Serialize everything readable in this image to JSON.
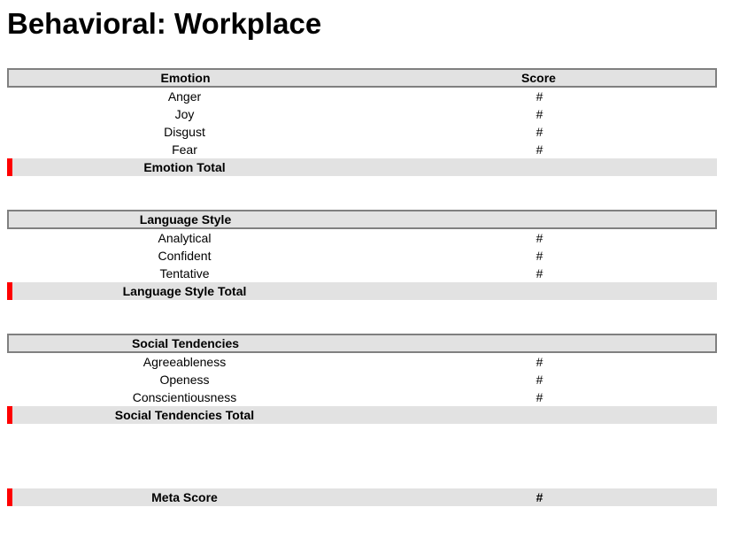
{
  "page": {
    "title": "Behavioral: Workplace"
  },
  "colors": {
    "accent_red": "#FF0000",
    "header_bg": "#E2E2E2",
    "header_border": "#808080",
    "total_row_bg": "#E2E2E2"
  },
  "sections": [
    {
      "header_label": "Emotion",
      "score_header": "Score",
      "rows": [
        {
          "label": "Anger",
          "score": "#"
        },
        {
          "label": "Joy",
          "score": "#"
        },
        {
          "label": "Disgust",
          "score": "#"
        },
        {
          "label": "Fear",
          "score": "#"
        }
      ],
      "total": {
        "label": "Emotion Total",
        "score": ""
      }
    },
    {
      "header_label": "Language Style",
      "score_header": "",
      "rows": [
        {
          "label": "Analytical",
          "score": "#"
        },
        {
          "label": "Confident",
          "score": "#"
        },
        {
          "label": "Tentative",
          "score": "#"
        }
      ],
      "total": {
        "label": "Language Style Total",
        "score": ""
      }
    },
    {
      "header_label": "Social Tendencies",
      "score_header": "",
      "rows": [
        {
          "label": "Agreeableness",
          "score": "#"
        },
        {
          "label": "Openess",
          "score": "#"
        },
        {
          "label": "Conscientiousness",
          "score": "#"
        }
      ],
      "total": {
        "label": "Social Tendencies Total",
        "score": ""
      }
    }
  ],
  "meta": {
    "label": "Meta Score",
    "score": "#"
  }
}
